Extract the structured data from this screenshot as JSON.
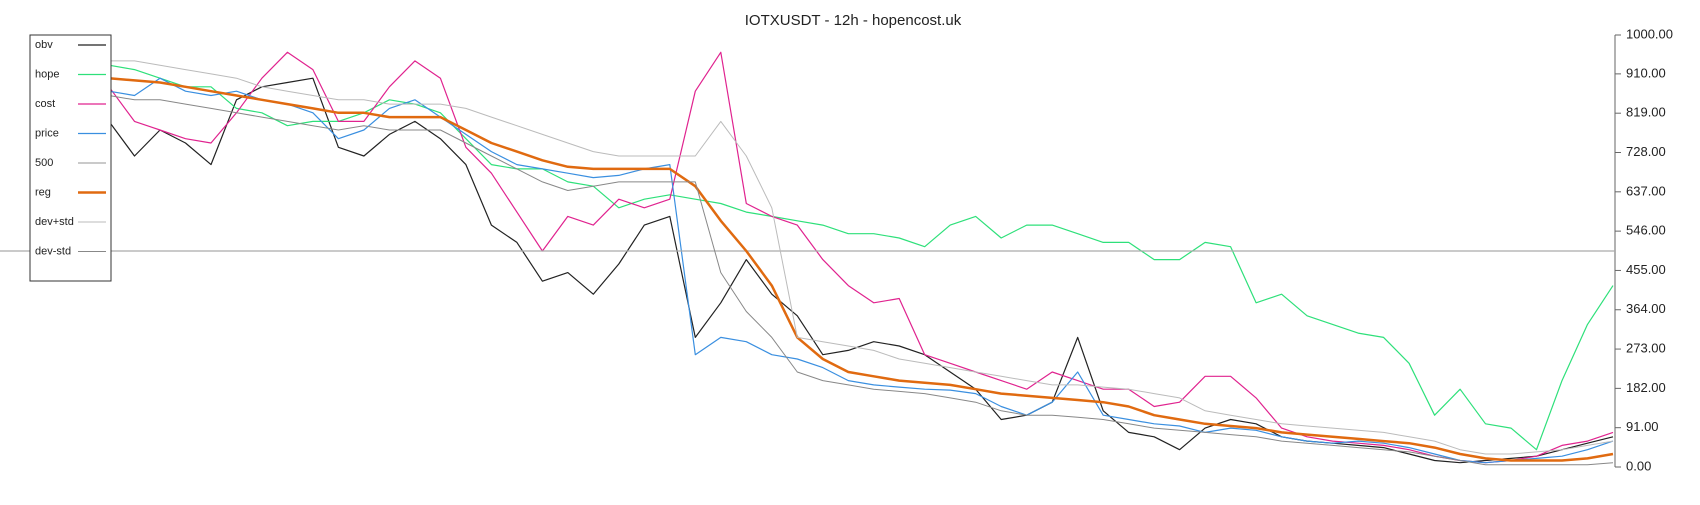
{
  "chart_data": {
    "type": "line",
    "title": "IOTXUSDT - 12h - hopencost.uk",
    "categories": [
      null,
      null,
      null,
      null,
      null,
      null,
      null,
      null,
      null,
      null,
      null,
      null,
      null,
      null,
      null,
      null,
      null,
      null,
      null,
      null,
      null,
      null,
      null,
      null,
      null,
      null,
      null,
      null,
      null,
      null,
      null,
      null,
      null,
      null,
      null,
      null,
      null,
      null,
      null,
      null,
      null,
      null,
      null,
      null,
      null,
      null,
      null,
      null,
      null,
      null,
      null,
      null,
      null,
      null,
      null,
      null,
      null,
      null,
      null,
      null
    ],
    "ylim": [
      0,
      1000
    ],
    "yticks": [
      {
        "value": 0,
        "label": "0.00"
      },
      {
        "value": 91,
        "label": "91.00"
      },
      {
        "value": 182,
        "label": "182.00"
      },
      {
        "value": 273,
        "label": "273.00"
      },
      {
        "value": 364,
        "label": "364.00"
      },
      {
        "value": 455,
        "label": "455.00"
      },
      {
        "value": 546,
        "label": "546.00"
      },
      {
        "value": 637,
        "label": "637.00"
      },
      {
        "value": 728,
        "label": "728.00"
      },
      {
        "value": 819,
        "label": "819.00"
      },
      {
        "value": 910,
        "label": "910.00"
      },
      {
        "value": 1000,
        "label": "1000.00"
      }
    ],
    "legend": "upper left",
    "series": [
      {
        "name": "obv",
        "color": "#222222",
        "width": 1.2,
        "values": [
          800,
          720,
          780,
          750,
          700,
          850,
          880,
          890,
          900,
          740,
          720,
          770,
          800,
          760,
          700,
          560,
          520,
          430,
          450,
          400,
          470,
          560,
          580,
          300,
          380,
          480,
          400,
          350,
          260,
          270,
          290,
          280,
          260,
          220,
          180,
          110,
          120,
          150,
          300,
          130,
          80,
          70,
          40,
          90,
          110,
          100,
          70,
          60,
          55,
          50,
          45,
          30,
          15,
          10,
          15,
          20,
          25,
          40,
          55,
          70
        ]
      },
      {
        "name": "hope",
        "color": "#2ee07a",
        "width": 1.2,
        "values": [
          930,
          920,
          900,
          880,
          880,
          830,
          820,
          790,
          800,
          800,
          820,
          850,
          840,
          820,
          760,
          700,
          690,
          690,
          660,
          650,
          600,
          620,
          630,
          620,
          610,
          590,
          580,
          570,
          560,
          540,
          540,
          530,
          510,
          560,
          580,
          530,
          560,
          560,
          540,
          520,
          520,
          480,
          480,
          520,
          510,
          380,
          400,
          350,
          330,
          310,
          300,
          240,
          120,
          180,
          100,
          90,
          40,
          200,
          330,
          420
        ]
      },
      {
        "name": "cost",
        "color": "#e0238f",
        "width": 1.2,
        "values": [
          880,
          800,
          780,
          760,
          750,
          820,
          900,
          960,
          920,
          800,
          800,
          880,
          940,
          900,
          740,
          680,
          590,
          500,
          580,
          560,
          620,
          600,
          620,
          870,
          960,
          610,
          580,
          560,
          480,
          420,
          380,
          390,
          260,
          240,
          220,
          200,
          180,
          220,
          200,
          180,
          180,
          140,
          150,
          210,
          210,
          160,
          90,
          70,
          60,
          55,
          50,
          40,
          25,
          15,
          10,
          15,
          25,
          50,
          60,
          80
        ]
      },
      {
        "name": "price",
        "color": "#3a8fe0",
        "width": 1.2,
        "values": [
          870,
          860,
          900,
          870,
          860,
          870,
          850,
          840,
          820,
          760,
          780,
          830,
          850,
          810,
          770,
          730,
          700,
          690,
          680,
          670,
          675,
          690,
          700,
          260,
          300,
          290,
          260,
          250,
          230,
          200,
          190,
          185,
          180,
          178,
          170,
          140,
          120,
          150,
          220,
          120,
          110,
          100,
          95,
          80,
          90,
          85,
          70,
          60,
          55,
          60,
          55,
          45,
          30,
          15,
          10,
          15,
          20,
          25,
          40,
          60
        ]
      },
      {
        "name": "500",
        "color": "#aaaaaa",
        "width": 1.2,
        "value": 500
      },
      {
        "name": "reg",
        "color": "#e06a10",
        "width": 2.5,
        "values": [
          900,
          895,
          890,
          880,
          870,
          860,
          850,
          840,
          830,
          820,
          820,
          810,
          810,
          810,
          780,
          750,
          730,
          710,
          695,
          690,
          690,
          690,
          690,
          650,
          570,
          500,
          420,
          300,
          250,
          220,
          210,
          200,
          195,
          190,
          180,
          170,
          165,
          160,
          155,
          150,
          140,
          120,
          110,
          100,
          95,
          90,
          80,
          75,
          70,
          65,
          60,
          55,
          45,
          30,
          20,
          15,
          15,
          15,
          20,
          30
        ]
      },
      {
        "name": "dev+std",
        "color": "#bbbbbb",
        "width": 1,
        "values": [
          940,
          940,
          930,
          920,
          910,
          900,
          880,
          870,
          860,
          850,
          850,
          840,
          840,
          840,
          830,
          810,
          790,
          770,
          750,
          730,
          720,
          720,
          720,
          720,
          800,
          720,
          600,
          300,
          290,
          280,
          270,
          250,
          240,
          230,
          220,
          210,
          200,
          190,
          190,
          185,
          180,
          170,
          160,
          130,
          120,
          110,
          100,
          95,
          90,
          85,
          80,
          70,
          60,
          40,
          30,
          30,
          35,
          40,
          50,
          60
        ]
      },
      {
        "name": "dev-std",
        "color": "#888888",
        "width": 1,
        "values": [
          860,
          850,
          850,
          840,
          830,
          820,
          810,
          800,
          790,
          780,
          790,
          780,
          780,
          780,
          750,
          720,
          690,
          660,
          640,
          650,
          660,
          660,
          660,
          660,
          450,
          360,
          300,
          220,
          200,
          190,
          180,
          175,
          170,
          160,
          150,
          130,
          120,
          120,
          115,
          110,
          100,
          90,
          85,
          80,
          75,
          70,
          60,
          55,
          50,
          45,
          40,
          35,
          25,
          15,
          5,
          5,
          5,
          5,
          5,
          10
        ]
      }
    ]
  }
}
